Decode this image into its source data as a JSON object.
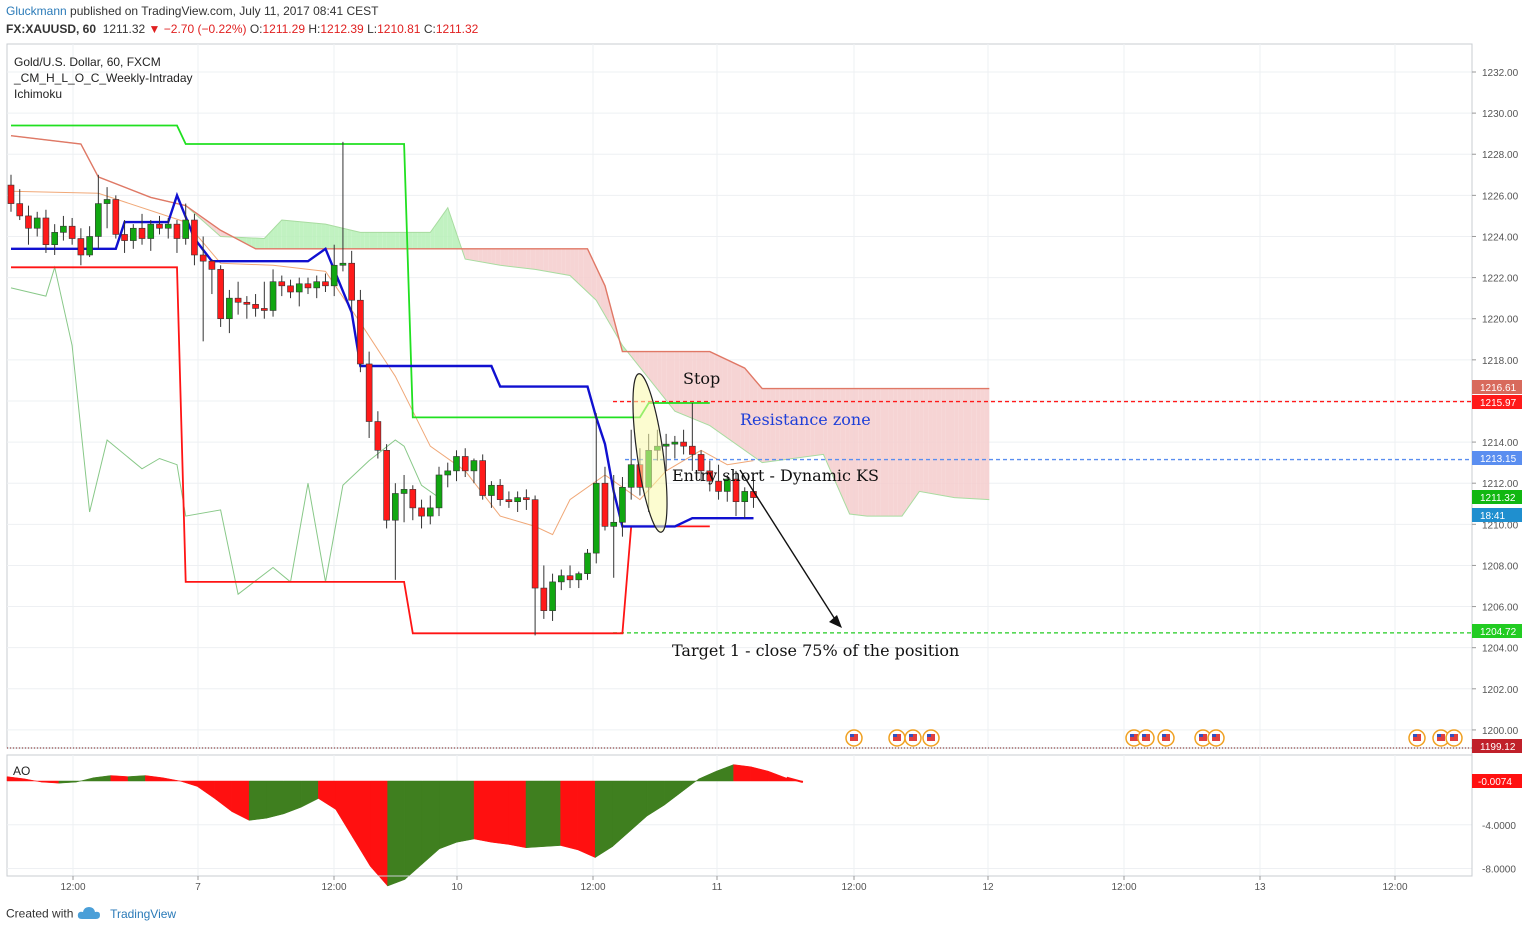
{
  "header": {
    "author": "Gluckmann",
    "published_text": "published on TradingView.com, July 11, 2017 08:41 CEST",
    "symbol": "FX:XAUUSD, 60",
    "last": "1211.32",
    "change": "▼ −2.70 (−0.22%)",
    "open_label": "O:",
    "open": "1211.29",
    "high_label": "H:",
    "high": "1212.39",
    "low_label": "L:",
    "low": "1210.81",
    "close_label": "C:",
    "close": "1211.32"
  },
  "legend": {
    "title": "Gold/U.S. Dollar, 60, FXCM",
    "indicator1": "_CM_H_L_O_C_Weekly-Intraday",
    "indicator2": "Ichimoku"
  },
  "annotations": {
    "stop": "Stop",
    "resistance": "Resistance zone",
    "entry": "Entry short - Dynamic KS",
    "target": "Target 1 - close 75% of the position"
  },
  "ao_label": "AO",
  "footer": {
    "created": "Created with",
    "brand": "TradingView"
  },
  "colors": {
    "bull": "#11a711",
    "bear": "#ff1a1a",
    "kijun": "#1010d0",
    "weekly_high": "#20e020",
    "weekly_low": "#ff1414",
    "cloud_bear": "#f4cccc",
    "cloud_bull": "#b6f0b6",
    "span_b": "#e07866",
    "chikou": "#88c888",
    "tenkan": "#f0a878",
    "ao_up": "#3f7f1f",
    "ao_down": "#ff1010",
    "grid": "#eef0f3"
  },
  "chart_data": [
    {
      "type": "candlestick",
      "title": "Gold/U.S. Dollar, 60, FXCM",
      "x_ticks": [
        "12:00",
        "7",
        "12:00",
        "10",
        "12:00",
        "11",
        "12:00",
        "12",
        "12:00",
        "13",
        "12:00"
      ],
      "ylim": [
        1198.6,
        1233.0
      ],
      "y_ticks": [
        1200.0,
        1202.0,
        1204.0,
        1206.0,
        1208.0,
        1210.0,
        1212.0,
        1214.0,
        1216.0,
        1218.0,
        1220.0,
        1222.0,
        1224.0,
        1226.0,
        1228.0,
        1230.0,
        1232.0
      ],
      "price_labels": [
        {
          "value": "1216.61",
          "color": "#d86a5c"
        },
        {
          "value": "1215.97",
          "color": "#ff1a1a"
        },
        {
          "value": "1213.15",
          "color": "#5a8ef0"
        },
        {
          "value": "1211.32",
          "color": "#11b711"
        },
        {
          "value": "18:41",
          "color": "#1f8fcf"
        },
        {
          "value": "1204.72",
          "color": "#22cc22"
        },
        {
          "value": "1199.12",
          "color": "#c0202a"
        }
      ],
      "candles": [
        [
          1226.5,
          1227.0,
          1225.2,
          1225.6
        ],
        [
          1225.6,
          1226.3,
          1224.8,
          1225.0
        ],
        [
          1225.0,
          1225.5,
          1223.6,
          1224.4
        ],
        [
          1224.4,
          1225.2,
          1224.0,
          1224.9
        ],
        [
          1224.9,
          1225.3,
          1223.2,
          1223.6
        ],
        [
          1223.6,
          1224.6,
          1223.1,
          1224.2
        ],
        [
          1224.2,
          1225.0,
          1223.8,
          1224.5
        ],
        [
          1224.5,
          1224.9,
          1223.6,
          1223.9
        ],
        [
          1223.9,
          1224.4,
          1222.6,
          1223.1
        ],
        [
          1223.1,
          1224.5,
          1223.0,
          1224.0
        ],
        [
          1224.0,
          1227.0,
          1223.4,
          1225.6
        ],
        [
          1225.6,
          1226.4,
          1224.4,
          1225.8
        ],
        [
          1225.8,
          1226.0,
          1223.9,
          1224.1
        ],
        [
          1224.1,
          1224.8,
          1223.2,
          1223.8
        ],
        [
          1223.8,
          1224.6,
          1223.4,
          1224.4
        ],
        [
          1224.4,
          1225.1,
          1223.6,
          1223.9
        ],
        [
          1223.9,
          1224.8,
          1223.3,
          1224.6
        ],
        [
          1224.6,
          1225.0,
          1224.1,
          1224.4
        ],
        [
          1224.4,
          1224.9,
          1223.9,
          1224.6
        ],
        [
          1224.6,
          1224.8,
          1223.2,
          1223.9
        ],
        [
          1223.9,
          1225.6,
          1223.6,
          1224.8
        ],
        [
          1224.8,
          1225.1,
          1222.6,
          1223.1
        ],
        [
          1223.1,
          1224.0,
          1218.9,
          1222.8
        ],
        [
          1222.8,
          1222.9,
          1221.2,
          1222.4
        ],
        [
          1222.4,
          1222.6,
          1219.6,
          1220.0
        ],
        [
          1220.0,
          1221.4,
          1219.3,
          1221.0
        ],
        [
          1221.0,
          1221.8,
          1220.2,
          1220.8
        ],
        [
          1220.8,
          1221.1,
          1220.0,
          1220.7
        ],
        [
          1220.7,
          1221.2,
          1220.1,
          1220.5
        ],
        [
          1220.5,
          1221.8,
          1220.0,
          1220.4
        ],
        [
          1220.4,
          1222.4,
          1220.1,
          1221.8
        ],
        [
          1221.8,
          1222.1,
          1221.1,
          1221.6
        ],
        [
          1221.6,
          1221.9,
          1221.0,
          1221.3
        ],
        [
          1221.3,
          1222.0,
          1220.6,
          1221.7
        ],
        [
          1221.7,
          1222.0,
          1221.2,
          1221.5
        ],
        [
          1221.5,
          1222.1,
          1221.0,
          1221.8
        ],
        [
          1221.8,
          1222.2,
          1221.3,
          1221.6
        ],
        [
          1221.6,
          1223.6,
          1221.1,
          1222.6
        ],
        [
          1222.6,
          1228.6,
          1222.3,
          1222.7
        ],
        [
          1222.7,
          1223.3,
          1220.4,
          1220.9
        ],
        [
          1220.9,
          1221.4,
          1217.4,
          1217.8
        ],
        [
          1217.8,
          1218.4,
          1214.2,
          1215.0
        ],
        [
          1215.0,
          1215.5,
          1213.2,
          1213.6
        ],
        [
          1213.6,
          1213.9,
          1209.8,
          1210.2
        ],
        [
          1210.2,
          1212.0,
          1207.3,
          1211.5
        ],
        [
          1211.5,
          1212.4,
          1210.1,
          1211.7
        ],
        [
          1211.7,
          1211.9,
          1210.2,
          1210.8
        ],
        [
          1210.8,
          1211.2,
          1209.8,
          1210.4
        ],
        [
          1210.4,
          1211.4,
          1210.0,
          1210.8
        ],
        [
          1210.8,
          1212.8,
          1210.4,
          1212.4
        ],
        [
          1212.4,
          1213.0,
          1211.8,
          1212.6
        ],
        [
          1212.6,
          1213.6,
          1212.1,
          1213.3
        ],
        [
          1213.3,
          1213.7,
          1212.3,
          1212.6
        ],
        [
          1212.6,
          1213.2,
          1212.0,
          1213.1
        ],
        [
          1213.1,
          1213.4,
          1211.2,
          1211.4
        ],
        [
          1211.4,
          1212.1,
          1210.8,
          1211.9
        ],
        [
          1211.9,
          1212.2,
          1210.9,
          1211.2
        ],
        [
          1211.2,
          1211.6,
          1210.8,
          1211.1
        ],
        [
          1211.1,
          1211.6,
          1210.6,
          1211.3
        ],
        [
          1211.3,
          1211.7,
          1210.7,
          1211.2
        ],
        [
          1211.2,
          1211.4,
          1204.6,
          1206.9
        ],
        [
          1206.9,
          1208.0,
          1205.4,
          1205.8
        ],
        [
          1205.8,
          1207.6,
          1205.3,
          1207.2
        ],
        [
          1207.2,
          1207.8,
          1206.8,
          1207.5
        ],
        [
          1207.5,
          1208.0,
          1206.9,
          1207.3
        ],
        [
          1207.3,
          1207.7,
          1206.9,
          1207.6
        ],
        [
          1207.6,
          1208.8,
          1207.3,
          1208.6
        ],
        [
          1208.6,
          1215.4,
          1208.1,
          1212.0
        ],
        [
          1212.0,
          1212.8,
          1209.7,
          1209.9
        ],
        [
          1209.9,
          1212.4,
          1207.4,
          1210.1
        ],
        [
          1210.1,
          1212.3,
          1209.4,
          1211.8
        ],
        [
          1211.8,
          1214.6,
          1211.2,
          1212.9
        ],
        [
          1212.9,
          1213.7,
          1211.4,
          1211.8
        ],
        [
          1211.8,
          1214.4,
          1210.6,
          1213.6
        ],
        [
          1213.6,
          1214.6,
          1213.1,
          1213.8
        ],
        [
          1213.8,
          1214.4,
          1212.6,
          1213.9
        ],
        [
          1213.9,
          1214.3,
          1213.2,
          1214.0
        ],
        [
          1214.0,
          1214.6,
          1213.4,
          1213.8
        ],
        [
          1213.8,
          1215.9,
          1212.6,
          1213.4
        ],
        [
          1213.4,
          1213.6,
          1212.1,
          1212.6
        ],
        [
          1212.6,
          1213.1,
          1211.6,
          1212.1
        ],
        [
          1212.1,
          1212.9,
          1211.2,
          1211.6
        ],
        [
          1211.6,
          1212.4,
          1211.1,
          1212.2
        ],
        [
          1212.2,
          1212.6,
          1210.4,
          1211.1
        ],
        [
          1211.1,
          1211.8,
          1210.3,
          1211.6
        ],
        [
          1211.6,
          1212.3,
          1210.8,
          1211.3
        ]
      ],
      "kijun": [
        [
          0,
          1223.4
        ],
        [
          12,
          1223.4
        ],
        [
          13,
          1224.7
        ],
        [
          18,
          1224.7
        ],
        [
          19,
          1226.0
        ],
        [
          21,
          1223.9
        ],
        [
          23,
          1222.8
        ],
        [
          34,
          1222.8
        ],
        [
          36,
          1223.4
        ],
        [
          39,
          1220.3
        ],
        [
          40,
          1217.7
        ],
        [
          55,
          1217.7
        ],
        [
          56,
          1216.7
        ],
        [
          66,
          1216.7
        ],
        [
          67,
          1215.2
        ],
        [
          68,
          1213.9
        ],
        [
          69,
          1211.6
        ],
        [
          70,
          1209.9
        ],
        [
          76,
          1209.9
        ],
        [
          78,
          1210.3
        ],
        [
          85,
          1210.3
        ]
      ],
      "weekly_high": [
        [
          0,
          1229.4
        ],
        [
          19,
          1229.4
        ],
        [
          20,
          1228.5
        ],
        [
          45,
          1228.5
        ],
        [
          46,
          1215.2
        ],
        [
          72,
          1215.2
        ],
        [
          73,
          1215.9
        ],
        [
          80,
          1215.9
        ]
      ],
      "weekly_low": [
        [
          0,
          1222.5
        ],
        [
          19,
          1222.5
        ],
        [
          20,
          1207.2
        ],
        [
          45,
          1207.2
        ],
        [
          46,
          1204.7
        ],
        [
          70,
          1204.7
        ],
        [
          71,
          1209.9
        ],
        [
          80,
          1209.9
        ]
      ],
      "span_b": [
        [
          0,
          1228.9
        ],
        [
          8,
          1228.5
        ],
        [
          10,
          1226.9
        ],
        [
          16,
          1225.9
        ],
        [
          20,
          1225.5
        ],
        [
          24,
          1224.3
        ],
        [
          28,
          1223.4
        ],
        [
          66,
          1223.4
        ],
        [
          68,
          1221.6
        ],
        [
          70,
          1218.4
        ],
        [
          80,
          1218.4
        ],
        [
          84,
          1217.6
        ],
        [
          86,
          1216.6
        ],
        [
          112,
          1216.6
        ]
      ],
      "span_a": [
        [
          0,
          1228.9
        ],
        [
          8,
          1228.5
        ],
        [
          10,
          1226.9
        ],
        [
          16,
          1225.9
        ],
        [
          20,
          1225.5
        ],
        [
          24,
          1224.0
        ],
        [
          29,
          1223.9
        ],
        [
          31,
          1224.8
        ],
        [
          36,
          1224.6
        ],
        [
          40,
          1224.2
        ],
        [
          48,
          1224.2
        ],
        [
          50,
          1225.4
        ],
        [
          52,
          1222.9
        ],
        [
          56,
          1222.6
        ],
        [
          60,
          1222.4
        ],
        [
          64,
          1222.1
        ],
        [
          67,
          1220.9
        ],
        [
          70,
          1218.7
        ],
        [
          76,
          1215.5
        ],
        [
          80,
          1214.8
        ],
        [
          86,
          1213.0
        ],
        [
          93,
          1213.4
        ],
        [
          96,
          1210.5
        ],
        [
          98,
          1210.4
        ],
        [
          102,
          1210.4
        ],
        [
          104,
          1211.6
        ],
        [
          108,
          1211.3
        ],
        [
          112,
          1211.2
        ]
      ],
      "chikou": [
        [
          0,
          1221.5
        ],
        [
          4,
          1221.1
        ],
        [
          5,
          1222.5
        ],
        [
          7,
          1218.7
        ],
        [
          9,
          1210.6
        ],
        [
          11,
          1214.1
        ],
        [
          15,
          1212.7
        ],
        [
          17,
          1213.2
        ],
        [
          19,
          1212.9
        ],
        [
          20,
          1210.4
        ],
        [
          24,
          1210.7
        ],
        [
          26,
          1206.6
        ],
        [
          30,
          1207.9
        ],
        [
          32,
          1207.2
        ],
        [
          34,
          1212.0
        ],
        [
          36,
          1207.2
        ],
        [
          38,
          1211.9
        ],
        [
          41,
          1213.1
        ],
        [
          44,
          1214.1
        ],
        [
          45,
          1213.8
        ],
        [
          47,
          1211.9
        ],
        [
          49,
          1211.3
        ]
      ],
      "tenkan": [
        [
          0,
          1226.2
        ],
        [
          10,
          1226.1
        ],
        [
          20,
          1224.7
        ],
        [
          24,
          1222.7
        ],
        [
          30,
          1222.6
        ],
        [
          36,
          1222.3
        ],
        [
          40,
          1219.8
        ],
        [
          44,
          1217.2
        ],
        [
          48,
          1213.8
        ],
        [
          52,
          1212.6
        ],
        [
          56,
          1210.4
        ],
        [
          60,
          1209.9
        ],
        [
          62,
          1209.5
        ],
        [
          64,
          1211.2
        ],
        [
          68,
          1212.4
        ],
        [
          72,
          1211.2
        ],
        [
          75,
          1212.6
        ],
        [
          79,
          1213.6
        ],
        [
          82,
          1212.9
        ],
        [
          85,
          1213.1
        ]
      ],
      "levels": [
        {
          "value": 1215.97,
          "color": "#ff1a1a",
          "style": "dashed"
        },
        {
          "value": 1213.15,
          "color": "#5a8ef0",
          "style": "dashed"
        },
        {
          "value": 1204.72,
          "color": "#22cc22",
          "style": "dashed"
        },
        {
          "value": 1199.12,
          "color": "#7a1a1a",
          "style": "dotted"
        }
      ]
    },
    {
      "type": "area",
      "title": "AO",
      "ylim": [
        -10.0,
        1.5
      ],
      "y_ticks": [
        -8.0,
        -4.0
      ],
      "last_value": "-0.0074",
      "values": [
        0.4,
        0.2,
        -0.1,
        -0.2,
        -0.1,
        0.3,
        0.5,
        0.4,
        0.5,
        0.3,
        0.0,
        -0.5,
        -1.6,
        -2.8,
        -3.6,
        -3.4,
        -3.0,
        -2.4,
        -1.6,
        -2.6,
        -5.2,
        -7.8,
        -9.6,
        -9.0,
        -7.6,
        -6.2,
        -5.6,
        -5.3,
        -5.6,
        -5.8,
        -6.1,
        -6.0,
        -5.9,
        -6.3,
        -7.0,
        -6.0,
        -4.6,
        -3.2,
        -2.2,
        -1.0,
        0.2,
        0.9,
        1.5,
        1.3,
        0.9,
        0.3,
        -0.1
      ]
    }
  ]
}
